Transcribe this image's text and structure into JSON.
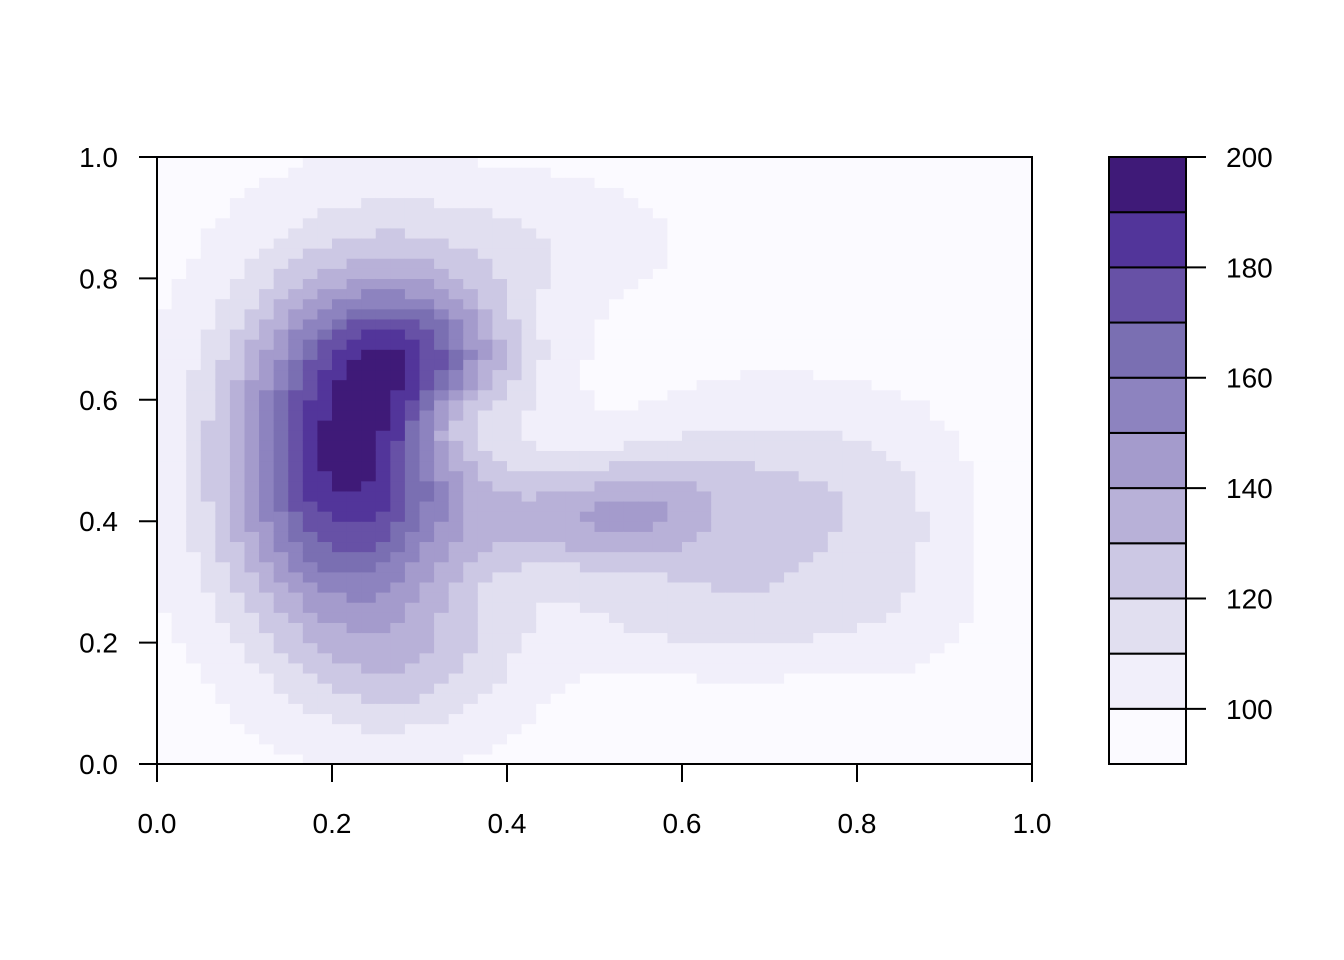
{
  "chart_data": {
    "type": "filled-contour",
    "title": "",
    "xlabel": "",
    "ylabel": "",
    "xlim": [
      0,
      1
    ],
    "ylim": [
      0,
      1
    ],
    "x_ticks": [
      0,
      0.2,
      0.4,
      0.6,
      0.8,
      1
    ],
    "x_tick_labels": [
      "0.0",
      "0.2",
      "0.4",
      "0.6",
      "0.8",
      "1.0"
    ],
    "y_ticks": [
      0,
      0.2,
      0.4,
      0.6,
      0.8,
      1
    ],
    "y_tick_labels": [
      "0.0",
      "0.2",
      "0.4",
      "0.6",
      "0.8",
      "1.0"
    ],
    "levels": [
      90,
      100,
      110,
      120,
      130,
      140,
      150,
      160,
      170,
      180,
      190,
      200
    ],
    "colors": [
      "#fbfaff",
      "#f1effa",
      "#e1dff0",
      "#ccc8e4",
      "#b8b1d8",
      "#a49bcc",
      "#8d83bf",
      "#7a6fb2",
      "#6751a6",
      "#52359a",
      "#3f1a78"
    ],
    "legend_ticks": [
      100,
      120,
      140,
      160,
      180,
      200
    ],
    "legend_tick_labels": [
      "100",
      "120",
      "140",
      "160",
      "180",
      "200"
    ],
    "legend_position": "right",
    "grid": false,
    "field_peaks": [
      {
        "x": 0.22,
        "y": 0.5,
        "peak": 98,
        "sx": 0.1,
        "sy": 0.2
      },
      {
        "x": 0.3,
        "y": 0.68,
        "peak": 40,
        "sx": 0.08,
        "sy": 0.08
      },
      {
        "x": 0.34,
        "y": 0.56,
        "peak": -22,
        "sx": 0.04,
        "sy": 0.05
      },
      {
        "x": 0.46,
        "y": 0.4,
        "peak": 30,
        "sx": 0.07,
        "sy": 0.06
      },
      {
        "x": 0.56,
        "y": 0.42,
        "peak": 26,
        "sx": 0.06,
        "sy": 0.07
      },
      {
        "x": 0.7,
        "y": 0.42,
        "peak": 28,
        "sx": 0.1,
        "sy": 0.12
      },
      {
        "x": 0.62,
        "y": 0.24,
        "peak": 14,
        "sx": 0.15,
        "sy": 0.06
      },
      {
        "x": 0.4,
        "y": 0.86,
        "peak": 14,
        "sx": 0.13,
        "sy": 0.08
      },
      {
        "x": 0.3,
        "y": 0.15,
        "peak": 16,
        "sx": 0.09,
        "sy": 0.08
      },
      {
        "x": 0.85,
        "y": 0.38,
        "peak": 10,
        "sx": 0.06,
        "sy": 0.14
      }
    ],
    "field_base": 95
  }
}
